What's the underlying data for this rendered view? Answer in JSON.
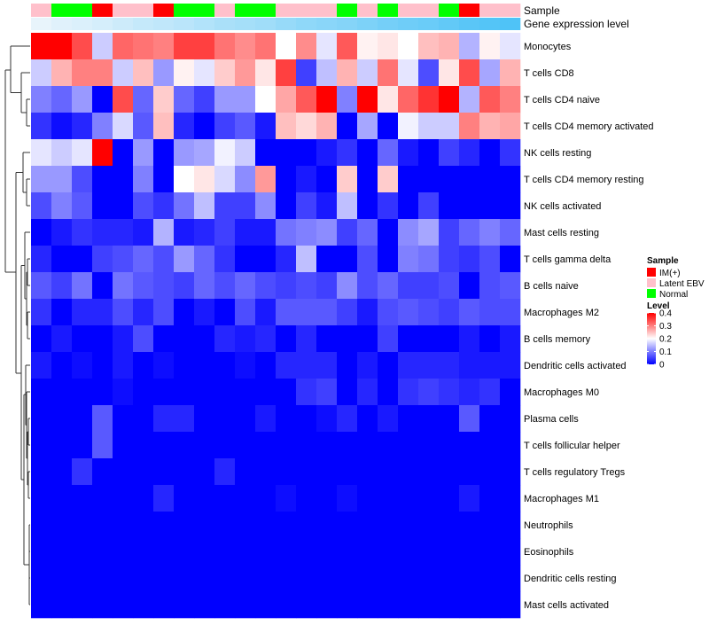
{
  "chart_data": {
    "type": "heatmap",
    "annotation_labels": {
      "sample": "Sample",
      "gene_expression": "Gene expression level"
    },
    "rows": [
      "Monocytes",
      "T cells CD8",
      "T cells CD4 naive",
      "T cells CD4 memory activated",
      "NK cells resting",
      "T cells CD4 memory resting",
      "NK cells activated",
      "Mast cells resting",
      "T cells gamma delta",
      "B cells naive",
      "Macrophages M2",
      "B cells memory",
      "Dendritic cells activated",
      "Macrophages M0",
      "Plasma cells",
      "T cells follicular helper",
      "T cells regulatory  Tregs",
      "Macrophages M1",
      "Neutrophils",
      "Eosinophils",
      "Dendritic cells resting",
      "Mast cells activated"
    ],
    "sample_groups": [
      "Latent EBV",
      "Normal",
      "Normal",
      "IM(+)",
      "Latent EBV",
      "Latent EBV",
      "IM(+)",
      "Normal",
      "Normal",
      "Latent EBV",
      "Normal",
      "Normal",
      "Latent EBV",
      "Latent EBV",
      "Latent EBV",
      "Normal",
      "Latent EBV",
      "Normal",
      "Latent EBV",
      "Latent EBV",
      "Normal",
      "IM(+)",
      "Latent EBV",
      "Latent EBV"
    ],
    "expression_level": [
      0.05,
      0.08,
      0.1,
      0.12,
      0.15,
      0.18,
      0.2,
      0.22,
      0.25,
      0.28,
      0.3,
      0.32,
      0.35,
      0.38,
      0.4,
      0.42,
      0.45,
      0.48,
      0.5,
      0.52,
      0.55,
      0.58,
      0.6,
      0.62
    ],
    "values": [
      [
        0.4,
        0.4,
        0.34,
        0.16,
        0.32,
        0.31,
        0.3,
        0.35,
        0.35,
        0.31,
        0.29,
        0.31,
        0.2,
        0.29,
        0.18,
        0.33,
        0.21,
        0.22,
        0.2,
        0.25,
        0.26,
        0.14,
        0.21,
        0.18
      ],
      [
        0.16,
        0.26,
        0.3,
        0.3,
        0.16,
        0.25,
        0.12,
        0.21,
        0.18,
        0.24,
        0.28,
        0.22,
        0.35,
        0.05,
        0.15,
        0.26,
        0.16,
        0.31,
        0.18,
        0.06,
        0.22,
        0.34,
        0.13,
        0.26
      ],
      [
        0.1,
        0.08,
        0.12,
        0.0,
        0.34,
        0.08,
        0.24,
        0.08,
        0.05,
        0.12,
        0.12,
        0.2,
        0.27,
        0.33,
        0.4,
        0.1,
        0.4,
        0.22,
        0.32,
        0.36,
        0.4,
        0.14,
        0.33,
        0.3
      ],
      [
        0.04,
        0.01,
        0.03,
        0.1,
        0.17,
        0.07,
        0.25,
        0.03,
        0.0,
        0.05,
        0.07,
        0.02,
        0.25,
        0.23,
        0.26,
        0.0,
        0.13,
        0.0,
        0.19,
        0.16,
        0.16,
        0.3,
        0.26,
        0.27
      ],
      [
        0.18,
        0.16,
        0.18,
        0.4,
        0.0,
        0.12,
        0.0,
        0.12,
        0.13,
        0.19,
        0.16,
        0.0,
        0.0,
        0.0,
        0.02,
        0.04,
        0.0,
        0.08,
        0.02,
        0.0,
        0.05,
        0.03,
        0.0,
        0.04
      ],
      [
        0.12,
        0.12,
        0.06,
        0.0,
        0.0,
        0.1,
        0.0,
        0.2,
        0.22,
        0.17,
        0.11,
        0.28,
        0.0,
        0.02,
        0.0,
        0.24,
        0.0,
        0.24,
        0.0,
        0.0,
        0.0,
        0.0,
        0.0,
        0.0
      ],
      [
        0.06,
        0.1,
        0.07,
        0.0,
        0.0,
        0.06,
        0.04,
        0.09,
        0.15,
        0.05,
        0.05,
        0.11,
        0.0,
        0.05,
        0.02,
        0.15,
        0.0,
        0.04,
        0.0,
        0.05,
        0.0,
        0.0,
        0.0,
        0.0
      ],
      [
        0.0,
        0.02,
        0.04,
        0.03,
        0.03,
        0.02,
        0.14,
        0.02,
        0.03,
        0.05,
        0.02,
        0.02,
        0.09,
        0.1,
        0.11,
        0.05,
        0.08,
        0.0,
        0.11,
        0.13,
        0.05,
        0.08,
        0.1,
        0.08
      ],
      [
        0.03,
        0.0,
        0.0,
        0.05,
        0.06,
        0.08,
        0.06,
        0.12,
        0.08,
        0.04,
        0.0,
        0.0,
        0.03,
        0.15,
        0.0,
        0.0,
        0.06,
        0.0,
        0.1,
        0.09,
        0.05,
        0.04,
        0.06,
        0.0
      ],
      [
        0.07,
        0.05,
        0.09,
        0.0,
        0.09,
        0.07,
        0.06,
        0.05,
        0.08,
        0.06,
        0.08,
        0.06,
        0.05,
        0.06,
        0.05,
        0.11,
        0.06,
        0.08,
        0.05,
        0.05,
        0.06,
        0.0,
        0.06,
        0.07
      ],
      [
        0.04,
        0.0,
        0.03,
        0.03,
        0.06,
        0.03,
        0.06,
        0.0,
        0.02,
        0.0,
        0.06,
        0.02,
        0.07,
        0.07,
        0.07,
        0.05,
        0.02,
        0.06,
        0.07,
        0.06,
        0.05,
        0.07,
        0.06,
        0.06
      ],
      [
        0.0,
        0.02,
        0.0,
        0.0,
        0.02,
        0.06,
        0.0,
        0.0,
        0.0,
        0.03,
        0.02,
        0.03,
        0.0,
        0.03,
        0.0,
        0.0,
        0.0,
        0.05,
        0.0,
        0.0,
        0.0,
        0.02,
        0.0,
        0.02
      ],
      [
        0.02,
        0.0,
        0.01,
        0.0,
        0.02,
        0.0,
        0.01,
        0.0,
        0.0,
        0.0,
        0.01,
        0.0,
        0.03,
        0.03,
        0.03,
        0.0,
        0.02,
        0.0,
        0.03,
        0.03,
        0.03,
        0.02,
        0.02,
        0.02
      ],
      [
        0.0,
        0.0,
        0.0,
        0.0,
        0.01,
        0.0,
        0.0,
        0.0,
        0.0,
        0.0,
        0.0,
        0.0,
        0.0,
        0.04,
        0.05,
        0.0,
        0.03,
        0.0,
        0.04,
        0.05,
        0.04,
        0.03,
        0.04,
        0.0
      ],
      [
        0.0,
        0.0,
        0.0,
        0.07,
        0.0,
        0.0,
        0.03,
        0.03,
        0.0,
        0.0,
        0.0,
        0.02,
        0.0,
        0.0,
        0.01,
        0.03,
        0.0,
        0.02,
        0.0,
        0.0,
        0.0,
        0.07,
        0.0,
        0.0
      ],
      [
        0.0,
        0.0,
        0.0,
        0.07,
        0.0,
        0.0,
        0.0,
        0.0,
        0.0,
        0.0,
        0.0,
        0.0,
        0.0,
        0.0,
        0.0,
        0.0,
        0.0,
        0.0,
        0.0,
        0.0,
        0.0,
        0.0,
        0.0,
        0.0
      ],
      [
        0.0,
        0.0,
        0.04,
        0.0,
        0.0,
        0.0,
        0.0,
        0.0,
        0.0,
        0.03,
        0.0,
        0.0,
        0.0,
        0.0,
        0.0,
        0.0,
        0.0,
        0.0,
        0.0,
        0.0,
        0.0,
        0.0,
        0.0,
        0.0
      ],
      [
        0.0,
        0.0,
        0.0,
        0.0,
        0.0,
        0.0,
        0.03,
        0.0,
        0.0,
        0.0,
        0.0,
        0.0,
        0.01,
        0.0,
        0.0,
        0.01,
        0.0,
        0.0,
        0.0,
        0.0,
        0.0,
        0.02,
        0.0,
        0.0
      ],
      [
        0.0,
        0.0,
        0.0,
        0.0,
        0.0,
        0.0,
        0.0,
        0.0,
        0.0,
        0.0,
        0.0,
        0.0,
        0.0,
        0.0,
        0.0,
        0.0,
        0.0,
        0.0,
        0.0,
        0.0,
        0.0,
        0.0,
        0.0,
        0.0
      ],
      [
        0.0,
        0.0,
        0.0,
        0.0,
        0.0,
        0.0,
        0.0,
        0.0,
        0.0,
        0.0,
        0.0,
        0.0,
        0.0,
        0.0,
        0.0,
        0.0,
        0.0,
        0.0,
        0.0,
        0.0,
        0.0,
        0.0,
        0.0,
        0.0
      ],
      [
        0.0,
        0.0,
        0.0,
        0.0,
        0.0,
        0.0,
        0.0,
        0.0,
        0.0,
        0.0,
        0.0,
        0.0,
        0.0,
        0.0,
        0.0,
        0.0,
        0.0,
        0.0,
        0.0,
        0.0,
        0.0,
        0.0,
        0.0,
        0.0
      ],
      [
        0.0,
        0.0,
        0.0,
        0.0,
        0.0,
        0.0,
        0.0,
        0.0,
        0.0,
        0.0,
        0.0,
        0.0,
        0.0,
        0.0,
        0.0,
        0.0,
        0.0,
        0.0,
        0.0,
        0.0,
        0.0,
        0.0,
        0.0,
        0.0
      ]
    ],
    "color_scale": {
      "min": 0,
      "mid": 0.2,
      "max": 0.4,
      "colors": [
        "#0000ff",
        "#ffffff",
        "#ff0000"
      ]
    },
    "legend": {
      "position": "right",
      "sample": {
        "title": "Sample",
        "items": [
          {
            "label": "IM(+)",
            "color": "#ff0000"
          },
          {
            "label": "Latent EBV",
            "color": "#ffc0cb"
          },
          {
            "label": "Normal",
            "color": "#00ff00"
          }
        ]
      },
      "level": {
        "title": "Level",
        "ticks": [
          "0.4",
          "0.3",
          "0.2",
          "0.1",
          "0"
        ],
        "tick_values": [
          0.4,
          0.3,
          0.2,
          0.1,
          0
        ]
      }
    },
    "gene_expression_colors": [
      "#e8f4fb",
      "#4fc3f7"
    ],
    "dendrogram": "row"
  }
}
